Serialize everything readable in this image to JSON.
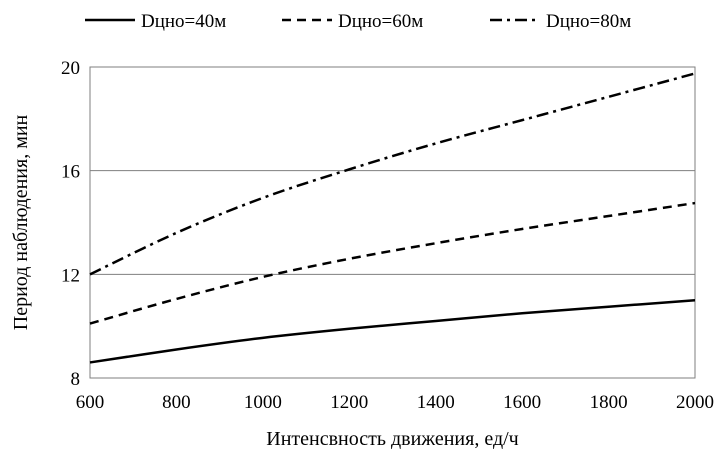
{
  "chart_data": {
    "type": "line",
    "title": "",
    "xlabel": "Интенсвность движения, ед/ч",
    "ylabel": "Период наблюдения, мин",
    "xlim": [
      600,
      2000
    ],
    "ylim": [
      8,
      20
    ],
    "x_ticks": [
      "600",
      "800",
      "1000",
      "1200",
      "1400",
      "1600",
      "1800",
      "2000"
    ],
    "y_ticks": [
      "8",
      "12",
      "16",
      "20"
    ],
    "grid": {
      "horizontal": true,
      "vertical": false
    },
    "legend_position": "top",
    "x": [
      600,
      800,
      1000,
      1200,
      1400,
      1600,
      1800,
      2000
    ],
    "series": [
      {
        "name": "Dцно=40м",
        "style": "solid",
        "values": [
          8.6,
          9.1,
          9.55,
          9.9,
          10.2,
          10.5,
          10.75,
          11.0
        ]
      },
      {
        "name": "Dцно=60м",
        "style": "dashed",
        "values": [
          10.1,
          11.05,
          11.9,
          12.6,
          13.2,
          13.75,
          14.25,
          14.75
        ]
      },
      {
        "name": "Dцно=80м",
        "style": "dashdot",
        "values": [
          12.0,
          13.6,
          14.95,
          16.05,
          17.05,
          17.95,
          18.85,
          19.75
        ]
      }
    ]
  }
}
